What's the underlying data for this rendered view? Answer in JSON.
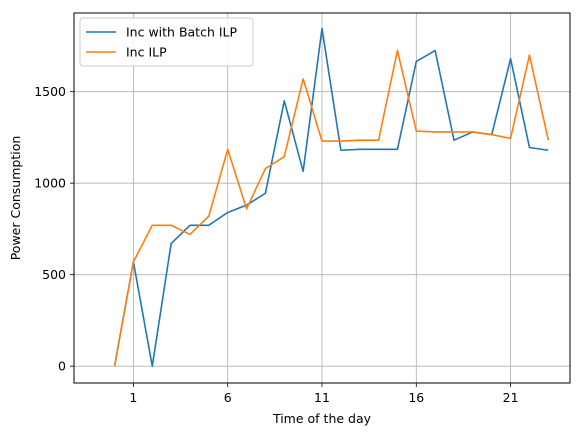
{
  "chart_data": {
    "type": "line",
    "title": "",
    "xlabel": "Time of the day",
    "ylabel": "Power Consumption",
    "xlim": [
      -2.15,
      24.15
    ],
    "ylim": [
      -92,
      1930
    ],
    "xticks": [
      1,
      6,
      11,
      16,
      21
    ],
    "xtick_labels": [
      "1",
      "6",
      "11",
      "16",
      "21"
    ],
    "yticks": [
      0,
      500,
      1000,
      1500
    ],
    "ytick_labels": [
      "0",
      "500",
      "1000",
      "1500"
    ],
    "grid": true,
    "legend_position": "top-left",
    "x": [
      0,
      1,
      2,
      3,
      4,
      5,
      6,
      7,
      8,
      9,
      10,
      11,
      12,
      13,
      14,
      15,
      16,
      17,
      18,
      19,
      20,
      21,
      22,
      23
    ],
    "series": [
      {
        "name": "Inc with Batch ILP",
        "color": "#1f77b4",
        "values": [
          0,
          570,
          0,
          670,
          770,
          770,
          840,
          880,
          945,
          1450,
          1065,
          1845,
          1180,
          1185,
          1185,
          1185,
          1665,
          1725,
          1235,
          1280,
          1265,
          1680,
          1195,
          1180
        ]
      },
      {
        "name": "Inc ILP",
        "color": "#ff7f0e",
        "values": [
          0,
          570,
          770,
          770,
          720,
          820,
          1185,
          860,
          1080,
          1145,
          1570,
          1230,
          1230,
          1235,
          1235,
          1725,
          1285,
          1280,
          1280,
          1280,
          1265,
          1245,
          1700,
          1235
        ]
      }
    ]
  }
}
